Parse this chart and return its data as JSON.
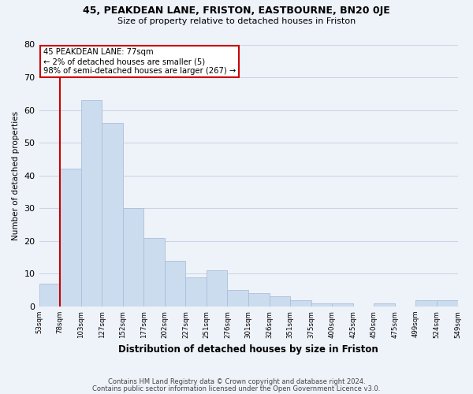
{
  "title1": "45, PEAKDEAN LANE, FRISTON, EASTBOURNE, BN20 0JE",
  "title2": "Size of property relative to detached houses in Friston",
  "xlabel": "Distribution of detached houses by size in Friston",
  "ylabel": "Number of detached properties",
  "bar_values": [
    7,
    42,
    63,
    56,
    30,
    21,
    14,
    9,
    11,
    5,
    4,
    3,
    2,
    1,
    1,
    0,
    1,
    0,
    2,
    2
  ],
  "bin_labels": [
    "53sqm",
    "78sqm",
    "103sqm",
    "127sqm",
    "152sqm",
    "177sqm",
    "202sqm",
    "227sqm",
    "251sqm",
    "276sqm",
    "301sqm",
    "326sqm",
    "351sqm",
    "375sqm",
    "400sqm",
    "425sqm",
    "450sqm",
    "475sqm",
    "499sqm",
    "524sqm",
    "549sqm"
  ],
  "bar_color": "#ccdcef",
  "bar_edge_color": "#aabfd8",
  "grid_color": "#c8d4e4",
  "annotation_text_line1": "45 PEAKDEAN LANE: 77sqm",
  "annotation_text_line2": "← 2% of detached houses are smaller (5)",
  "annotation_text_line3": "98% of semi-detached houses are larger (267) →",
  "annotation_box_color": "#ffffff",
  "annotation_box_edge": "#cc0000",
  "vline_color": "#cc0000",
  "vline_x": 1,
  "ylim": [
    0,
    80
  ],
  "yticks": [
    0,
    10,
    20,
    30,
    40,
    50,
    60,
    70,
    80
  ],
  "footnote1": "Contains HM Land Registry data © Crown copyright and database right 2024.",
  "footnote2": "Contains public sector information licensed under the Open Government Licence v3.0.",
  "bg_color": "#eef2f9"
}
